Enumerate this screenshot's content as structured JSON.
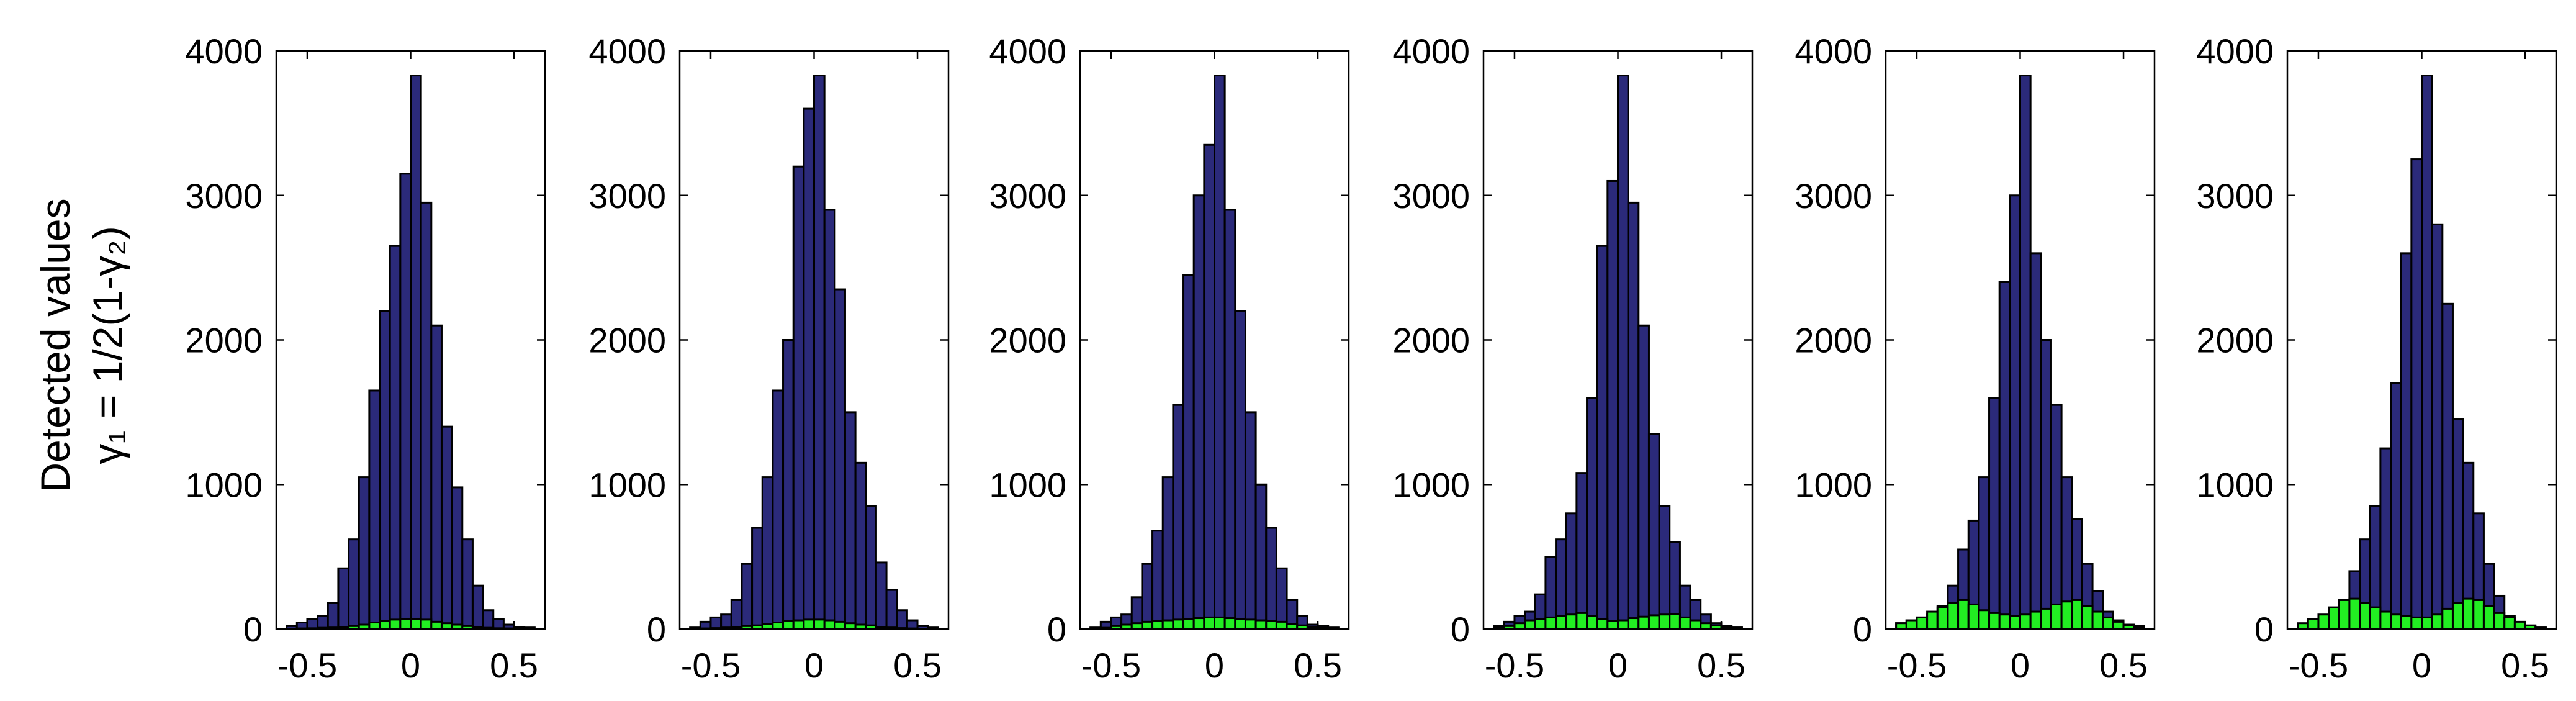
{
  "chart_data": {
    "type": "bar",
    "layout": "six histogram panels side by side, sharing a y-axis label",
    "ylabel_lines": [
      "Detected values",
      "γ₁ = 1/2(1-γ₂)"
    ],
    "bin_centers": [
      -0.575,
      -0.525,
      -0.475,
      -0.425,
      -0.375,
      -0.325,
      -0.275,
      -0.225,
      -0.175,
      -0.125,
      -0.075,
      -0.025,
      0.025,
      0.075,
      0.125,
      0.175,
      0.225,
      0.275,
      0.325,
      0.375,
      0.425,
      0.475,
      0.525,
      0.575
    ],
    "bin_width": 0.05,
    "xlim": [
      -0.65,
      0.65
    ],
    "ylim": [
      0,
      4000
    ],
    "xticks": [
      -0.5,
      0,
      0.5
    ],
    "xtick_labels": [
      "-0.5",
      "0",
      "0.5"
    ],
    "yticks": [
      0,
      1000,
      2000,
      3000,
      4000
    ],
    "ytick_labels": [
      "0",
      "1000",
      "2000",
      "3000",
      "4000"
    ],
    "colors": {
      "all_values": "#2b2a7a",
      "detected_values": "#22ee22",
      "bar_edge": "#000000"
    },
    "panels": [
      {
        "series": [
          {
            "values": [
              20,
              45,
              70,
              90,
              180,
              420,
              620,
              1050,
              1650,
              2200,
              2650,
              3150,
              3830,
              2950,
              2100,
              1400,
              980,
              620,
              300,
              130,
              70,
              30,
              15,
              10
            ]
          },
          {
            "values": [
              2,
              4,
              5,
              8,
              10,
              15,
              20,
              30,
              45,
              55,
              65,
              70,
              70,
              65,
              50,
              40,
              30,
              20,
              12,
              8,
              5,
              4,
              2,
              2
            ]
          }
        ]
      },
      {
        "series": [
          {
            "values": [
              10,
              50,
              80,
              100,
              200,
              450,
              700,
              1050,
              1650,
              2000,
              3200,
              3600,
              3830,
              2900,
              2350,
              1500,
              1150,
              850,
              460,
              270,
              130,
              60,
              20,
              10
            ]
          },
          {
            "values": [
              2,
              4,
              6,
              10,
              15,
              20,
              25,
              35,
              45,
              55,
              60,
              65,
              65,
              60,
              50,
              40,
              30,
              25,
              15,
              10,
              6,
              4,
              2,
              2
            ]
          }
        ]
      },
      {
        "series": [
          {
            "values": [
              10,
              50,
              80,
              100,
              220,
              450,
              680,
              1050,
              1550,
              2450,
              3000,
              3350,
              3830,
              2900,
              2200,
              1500,
              1000,
              700,
              420,
              200,
              90,
              30,
              20,
              10
            ]
          },
          {
            "values": [
              4,
              8,
              20,
              30,
              40,
              50,
              55,
              60,
              65,
              70,
              75,
              80,
              80,
              75,
              70,
              65,
              60,
              55,
              50,
              35,
              25,
              15,
              8,
              4
            ]
          }
        ]
      },
      {
        "series": [
          {
            "values": [
              20,
              50,
              90,
              120,
              240,
              500,
              620,
              800,
              1080,
              1600,
              2650,
              3100,
              3830,
              2950,
              2100,
              1350,
              850,
              600,
              300,
              200,
              100,
              40,
              20,
              10
            ]
          },
          {
            "values": [
              10,
              20,
              40,
              60,
              70,
              80,
              90,
              100,
              110,
              90,
              70,
              55,
              60,
              75,
              85,
              95,
              100,
              105,
              80,
              60,
              40,
              25,
              15,
              10
            ]
          }
        ]
      },
      {
        "series": [
          {
            "values": [
              40,
              60,
              80,
              100,
              160,
              300,
              550,
              750,
              1050,
              1600,
              2400,
              3000,
              3830,
              2600,
              2000,
              1550,
              1050,
              760,
              450,
              260,
              120,
              60,
              30,
              20
            ]
          },
          {
            "values": [
              40,
              60,
              80,
              120,
              150,
              180,
              200,
              170,
              130,
              110,
              100,
              90,
              100,
              120,
              140,
              170,
              190,
              200,
              160,
              120,
              80,
              50,
              25,
              10
            ]
          }
        ]
      },
      {
        "series": [
          {
            "values": [
              20,
              40,
              70,
              110,
              190,
              400,
              620,
              850,
              1250,
              1700,
              2600,
              3250,
              3830,
              2800,
              2250,
              1450,
              1150,
              800,
              450,
              230,
              90,
              40,
              20,
              10
            ]
          },
          {
            "values": [
              40,
              70,
              100,
              150,
              200,
              210,
              180,
              150,
              120,
              100,
              90,
              80,
              80,
              100,
              140,
              180,
              210,
              200,
              160,
              110,
              80,
              50,
              25,
              10
            ]
          }
        ]
      }
    ]
  }
}
